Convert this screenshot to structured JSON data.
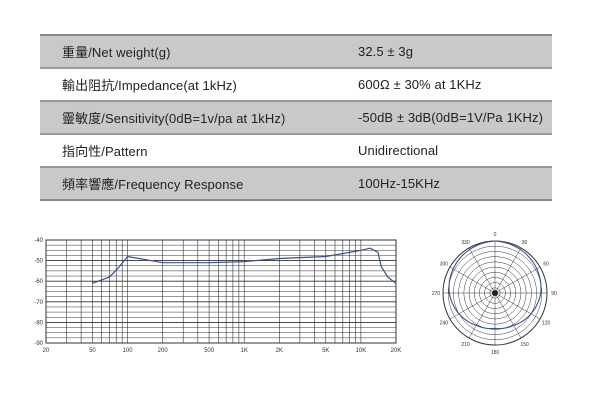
{
  "specs": [
    {
      "label": "重量/Net weight(g)",
      "value": "32.5 ± 3g"
    },
    {
      "label": "輸出阻抗/Impedance(at 1kHz)",
      "value": "600Ω ± 30% at 1KHz"
    },
    {
      "label": "靈敏度/Sensitivity(0dB=1v/pa at 1kHz)",
      "value": "-50dB ± 3dB(0dB=1V/Pa 1KHz)"
    },
    {
      "label": "指向性/Pattern",
      "value": "Unidirectional"
    },
    {
      "label": "頻率響應/Frequency Response",
      "value": "100Hz-15KHz"
    }
  ],
  "colors": {
    "curve": "#3b4f9a",
    "grid": "#333333",
    "row_shade": "#c9c9c9"
  },
  "chart_data": [
    {
      "type": "line",
      "x_scale": "log",
      "xlim": [
        20,
        20000
      ],
      "ylim": [
        -90,
        -40
      ],
      "x_ticks": [
        "20",
        "50",
        "100",
        "200",
        "500",
        "1K",
        "2K",
        "5K",
        "10K",
        "20K"
      ],
      "y_ticks": [
        "-40",
        "-50",
        "-60",
        "-70",
        "-80",
        "-90"
      ],
      "grid": true,
      "series": [
        {
          "x": [
            50,
            70,
            85,
            100,
            200,
            500,
            1000,
            2000,
            5000,
            8000,
            10000,
            12000,
            14000,
            15000,
            17000,
            20000
          ],
          "y": [
            -61,
            -58,
            -53,
            -48,
            -51,
            -51,
            -50.5,
            -49,
            -48,
            -46,
            -45,
            -44,
            -46,
            -53,
            -58,
            -61
          ]
        }
      ]
    },
    {
      "type": "polar",
      "angle_labels": [
        "0",
        "30",
        "60",
        "90",
        "120",
        "150",
        "180",
        "210",
        "240",
        "270",
        "300",
        "330"
      ],
      "pattern": "unidirectional",
      "series": [
        {
          "angles": [
            0,
            30,
            60,
            90,
            120,
            150,
            180,
            210,
            240,
            270,
            300,
            330
          ],
          "r": [
            1.0,
            0.97,
            0.93,
            0.88,
            0.8,
            0.72,
            0.68,
            0.72,
            0.8,
            0.88,
            0.93,
            0.97
          ]
        }
      ]
    }
  ]
}
